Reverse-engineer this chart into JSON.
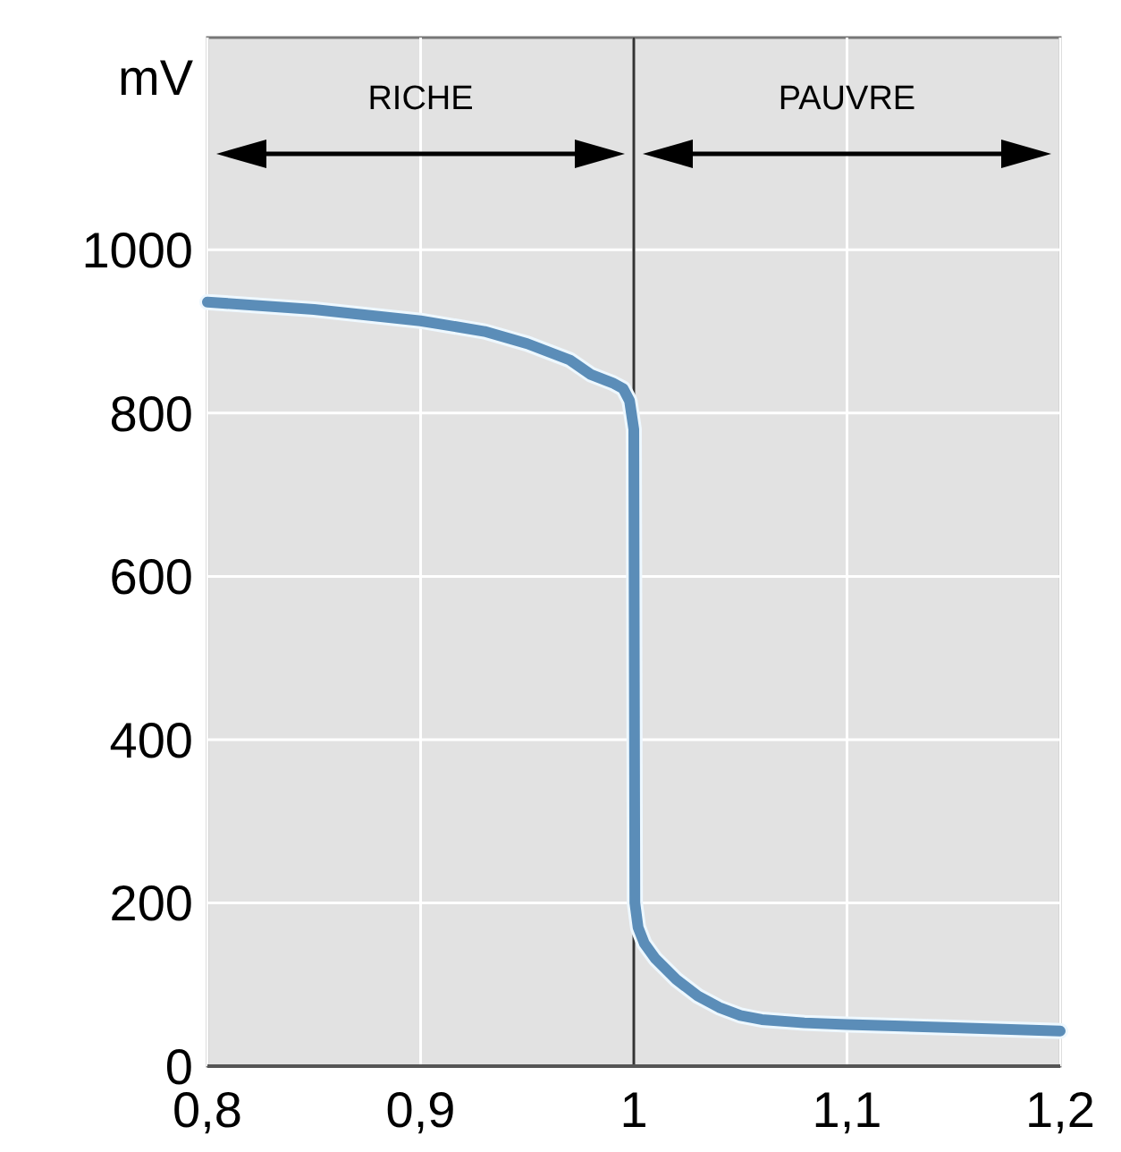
{
  "chart_data": {
    "type": "line",
    "ylabel": "mV",
    "annotations": [
      "RICHE",
      "PAUVRE"
    ],
    "xlim": [
      0.8,
      1.2
    ],
    "ylim": [
      0,
      1260
    ],
    "xticks": [
      {
        "value": 0.8,
        "label": "0,8"
      },
      {
        "value": 0.9,
        "label": "0,9"
      },
      1,
      {
        "value": 1.1,
        "label": "1,1"
      },
      {
        "value": 1.2,
        "label": "1,2"
      }
    ],
    "yticks": [
      0,
      200,
      400,
      600,
      800,
      1000
    ],
    "grid": true,
    "ref_lines": [
      {
        "axis": "x",
        "value": 1,
        "color": "#333333"
      }
    ],
    "series": [
      {
        "color": "#5b8db8",
        "x": [
          0.8,
          0.85,
          0.9,
          0.93,
          0.95,
          0.97,
          0.98,
          0.99,
          0.995,
          0.998,
          1.0,
          1.0005,
          1.002,
          1.005,
          1.01,
          1.02,
          1.03,
          1.04,
          1.05,
          1.06,
          1.08,
          1.1,
          1.15,
          1.2
        ],
        "values": [
          936,
          927,
          913,
          900,
          885,
          865,
          847,
          837,
          830,
          815,
          780,
          200,
          170,
          150,
          132,
          106,
          86,
          72,
          62,
          57,
          53,
          51,
          47,
          43
        ]
      }
    ]
  }
}
